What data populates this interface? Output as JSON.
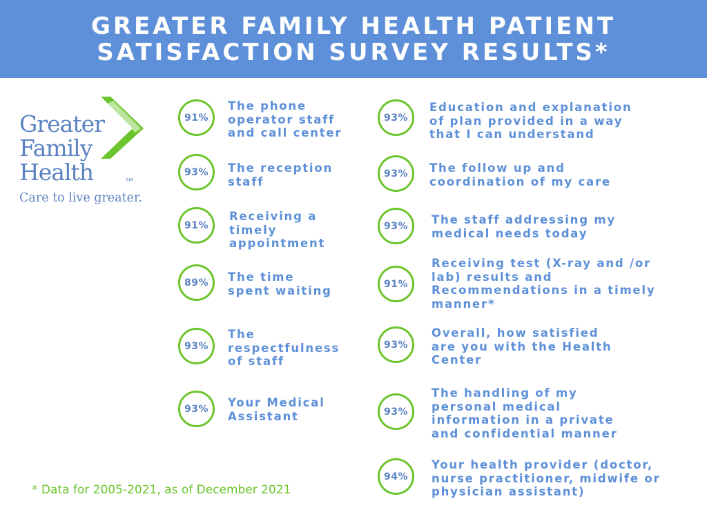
{
  "header": {
    "title_line1": "GREATER FAMILY HEALTH PATIENT",
    "title_line2": "SATISFACTION SURVEY RESULTS*"
  },
  "logo": {
    "word1": "Greater",
    "word2": "Family",
    "word3": "Health",
    "sm": "SM",
    "tagline": "Care to live greater.",
    "brand_green": "#6cc52c",
    "brand_blue": "#5b83c2"
  },
  "colors": {
    "header_bg": "#5d90d8",
    "ring": "#6cc52c",
    "text": "#5d90d8"
  },
  "left_items": [
    {
      "percent": "91%",
      "lines": [
        "The phone",
        "operator staff",
        "and call center"
      ]
    },
    {
      "percent": "93%",
      "lines": [
        "The reception",
        "staff"
      ]
    },
    {
      "percent": "91%",
      "lines": [
        "Receiving a",
        "timely",
        "appointment"
      ]
    },
    {
      "percent": "89%",
      "lines": [
        "The time",
        "spent waiting"
      ]
    },
    {
      "percent": "93%",
      "lines": [
        "The",
        "respectfulness",
        "of staff"
      ]
    },
    {
      "percent": "93%",
      "lines": [
        "Your Medical",
        "Assistant"
      ]
    }
  ],
  "right_items": [
    {
      "percent": "93%",
      "lines": [
        "Education and explanation",
        "of plan provided in a way",
        "that I can understand"
      ]
    },
    {
      "percent": "93%",
      "lines": [
        "The follow up and",
        "coordination of my care"
      ]
    },
    {
      "percent": "93%",
      "lines": [
        "The staff addressing my",
        "medical needs today"
      ]
    },
    {
      "percent": "91%",
      "lines": [
        "Receiving test (X-ray and /or",
        "lab) results and",
        "Recommendations in a timely",
        "manner*"
      ]
    },
    {
      "percent": "93%",
      "lines": [
        "Overall, how satisfied",
        "are you with the Health",
        "Center"
      ]
    },
    {
      "percent": "93%",
      "lines": [
        "The handling of my",
        "personal medical",
        "information in a private",
        "and confidential manner"
      ]
    },
    {
      "percent": "94%",
      "lines": [
        "Your health provider (doctor,",
        "nurse practitioner, midwife or",
        "physician assistant)"
      ]
    }
  ],
  "footnote": "* Data for 2005-2021, as of December 2021"
}
